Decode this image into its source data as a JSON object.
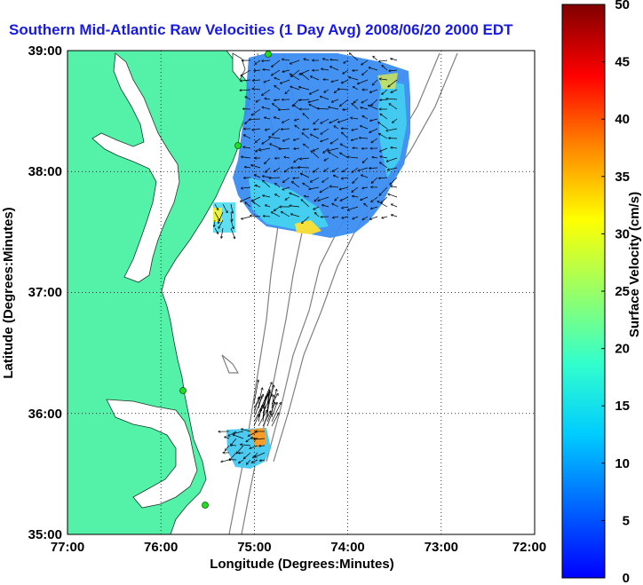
{
  "title": "Southern Mid-Atlantic Raw Velocities (1 Day Avg) 2008/06/20 2000 EDT",
  "x_axis": {
    "label": "Longitude (Degrees:Minutes)",
    "ticks": [
      "77:00",
      "76:00",
      "75:00",
      "74:00",
      "73:00",
      "72:00"
    ]
  },
  "y_axis": {
    "label": "Latitude (Degrees:Minutes)",
    "ticks": [
      "39:00",
      "38:00",
      "37:00",
      "36:00",
      "35:00"
    ]
  },
  "colorbar": {
    "label": "Surface Velocity (cm/s)",
    "min": 0,
    "max": 50,
    "ticks": [
      "50",
      "45",
      "40",
      "35",
      "30",
      "25",
      "20",
      "15",
      "10",
      "5",
      "0"
    ]
  },
  "colors": {
    "land": "#54f2a8",
    "title": "#1919e6",
    "station": "#22dd22"
  },
  "map_extent": {
    "lon": [
      -77,
      -72
    ],
    "lat": [
      35,
      39
    ]
  }
}
